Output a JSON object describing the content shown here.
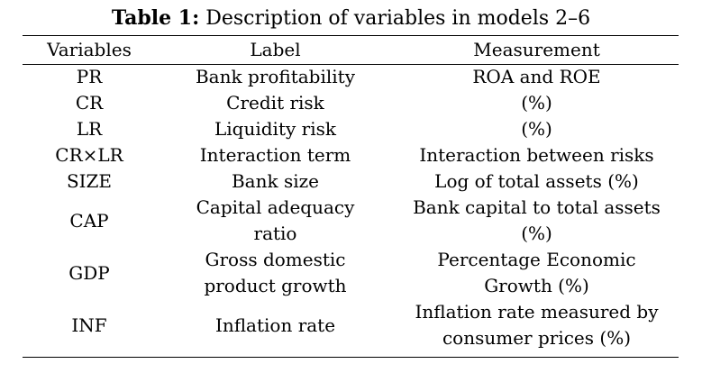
{
  "caption": {
    "number": "Table 1:",
    "text": "Description of variables in models 2–6"
  },
  "headers": [
    "Variables",
    "Label",
    "Measurement"
  ],
  "rows": [
    {
      "variable": "PR",
      "label": "Bank profitability",
      "measurement": "ROA and ROE"
    },
    {
      "variable": "CR",
      "label": "Credit risk",
      "measurement": "(%)"
    },
    {
      "variable": "LR",
      "label": "Liquidity risk",
      "measurement": "(%)"
    },
    {
      "variable": "CR×LR",
      "label": "Interaction term",
      "measurement": "Interaction between risks"
    },
    {
      "variable": "SIZE",
      "label": "Bank size",
      "measurement": "Log of total assets (%)"
    },
    {
      "variable": "CAP",
      "label": "Capital adequacy ratio",
      "measurement": "Bank capital to total assets (%)"
    },
    {
      "variable": "GDP",
      "label": "Gross domestic product growth",
      "measurement": "Percentage Economic Growth (%)"
    },
    {
      "variable": "INF",
      "label": "Inflation rate",
      "measurement": "Inflation rate measured by consumer prices (%)"
    }
  ]
}
